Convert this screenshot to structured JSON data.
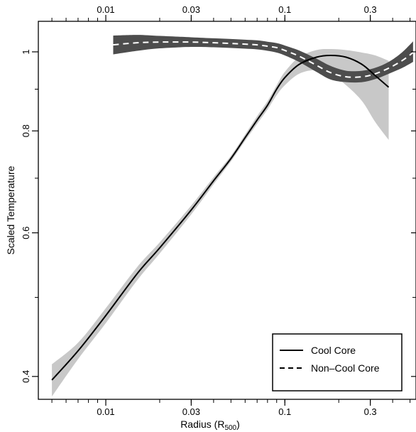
{
  "chart_data": {
    "type": "line",
    "xscale": "log",
    "yscale": "log",
    "xlim": [
      0.0042,
      0.54
    ],
    "ylim": [
      0.375,
      1.09
    ],
    "xlabel": "Radius (R",
    "xlabel_sub": "500",
    "xlabel_close": ")",
    "ylabel": "Scaled Temperature",
    "x_ticks": [
      0.01,
      0.03,
      0.1,
      0.3
    ],
    "x_tick_labels": [
      "0.01",
      "0.03",
      "0.1",
      "0.3"
    ],
    "top_ticks": [
      0.01,
      0.03,
      0.1,
      0.3
    ],
    "top_tick_labels": [
      "0.01",
      "0.03",
      "0.1",
      "0.3"
    ],
    "y_ticks": [
      0.4,
      0.6,
      0.8,
      1.0
    ],
    "y_tick_labels": [
      "0.4",
      "0.6",
      "0.8",
      "1"
    ],
    "grid": false,
    "legend_position": "bottom-right",
    "series": [
      {
        "name": "Cool Core",
        "line_style": "solid",
        "line_color": "#000000",
        "band_color": "#c8c8c8",
        "x": [
          0.005,
          0.007,
          0.01,
          0.015,
          0.02,
          0.03,
          0.04,
          0.05,
          0.06,
          0.07,
          0.08,
          0.09,
          0.1,
          0.12,
          0.15,
          0.18,
          0.22,
          0.27,
          0.32,
          0.38
        ],
        "y": [
          0.396,
          0.43,
          0.475,
          0.535,
          0.575,
          0.64,
          0.695,
          0.74,
          0.785,
          0.825,
          0.86,
          0.9,
          0.93,
          0.965,
          0.985,
          0.99,
          0.985,
          0.965,
          0.935,
          0.905
        ],
        "y_low": [
          0.378,
          0.42,
          0.465,
          0.525,
          0.566,
          0.632,
          0.688,
          0.734,
          0.778,
          0.816,
          0.85,
          0.885,
          0.91,
          0.94,
          0.95,
          0.94,
          0.91,
          0.87,
          0.82,
          0.78
        ],
        "y_high": [
          0.414,
          0.44,
          0.485,
          0.545,
          0.584,
          0.648,
          0.702,
          0.746,
          0.792,
          0.834,
          0.87,
          0.91,
          0.945,
          0.985,
          1.005,
          1.008,
          1.005,
          0.998,
          0.99,
          0.975
        ]
      },
      {
        "name": "Non–Cool Core",
        "line_style": "dashed",
        "line_color": "#ffffff",
        "band_color": "#4d4d4d",
        "x": [
          0.011,
          0.015,
          0.02,
          0.03,
          0.04,
          0.05,
          0.06,
          0.07,
          0.08,
          0.09,
          0.1,
          0.12,
          0.15,
          0.18,
          0.22,
          0.27,
          0.32,
          0.38,
          0.45,
          0.52
        ],
        "y": [
          1.02,
          1.026,
          1.028,
          1.028,
          1.026,
          1.024,
          1.022,
          1.02,
          1.016,
          1.012,
          1.004,
          0.988,
          0.963,
          0.943,
          0.932,
          0.932,
          0.94,
          0.955,
          0.975,
          0.998
        ],
        "y_low": [
          0.993,
          1.003,
          1.01,
          1.014,
          1.013,
          1.011,
          1.009,
          1.007,
          1.003,
          0.998,
          0.99,
          0.972,
          0.945,
          0.925,
          0.918,
          0.918,
          0.926,
          0.94,
          0.955,
          0.972
        ],
        "y_high": [
          1.047,
          1.049,
          1.046,
          1.042,
          1.039,
          1.037,
          1.035,
          1.033,
          1.029,
          1.025,
          1.018,
          1.004,
          0.981,
          0.961,
          0.948,
          0.948,
          0.956,
          0.972,
          0.998,
          1.03
        ]
      }
    ]
  },
  "legend": {
    "items": [
      {
        "label": "Cool Core",
        "style": "solid"
      },
      {
        "label": "Non–Cool Core",
        "style": "dashed"
      }
    ]
  }
}
